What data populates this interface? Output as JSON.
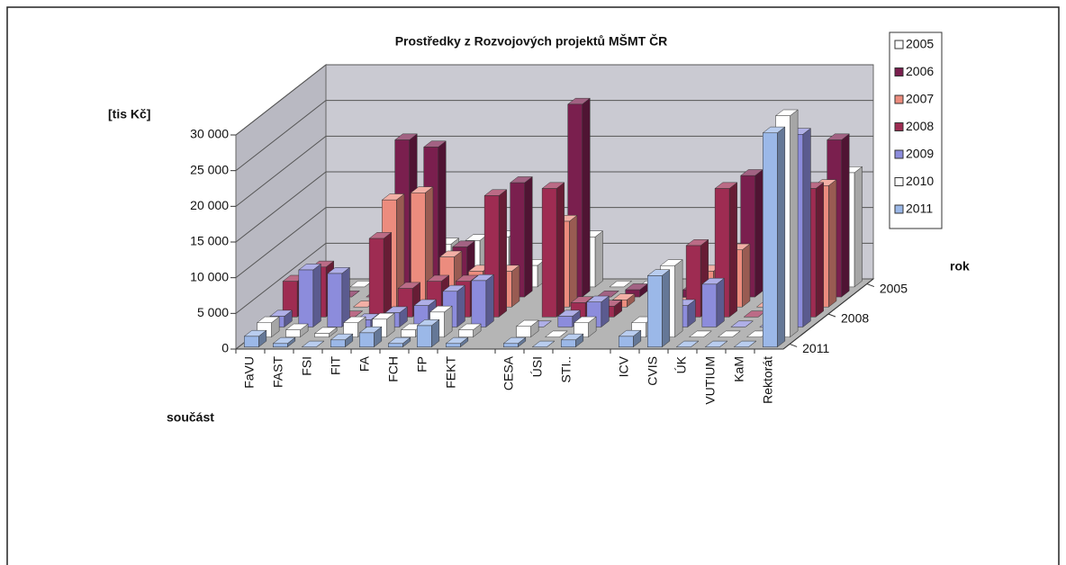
{
  "chart_data": {
    "type": "bar3d",
    "title": "Prostředky z Rozvojových projektů MŠMT ČR",
    "y_label": "[tis Kč]",
    "x_label": "součást",
    "z_label": "rok",
    "categories": [
      "FaVU",
      "FAST",
      "FSI",
      "FIT",
      "FA",
      "FCH",
      "FP",
      "FEKT",
      null,
      "CESA",
      "ÚSI",
      "STI..",
      null,
      "ICV",
      "CVIS",
      "ÚK",
      "VUTIUM",
      "KaM",
      "Rektorát"
    ],
    "ylim": [
      0,
      30000
    ],
    "yticks": [
      0,
      {
        "value": 5000,
        "label": "5 000"
      },
      {
        "value": 10000,
        "label": "10 000"
      },
      {
        "value": 15000,
        "label": "15 000"
      },
      {
        "value": 20000,
        "label": "20 000"
      },
      {
        "value": 25000,
        "label": "25 000"
      },
      {
        "value": 30000,
        "label": "30 000"
      }
    ],
    "grid": true,
    "series": [
      {
        "name": "2005",
        "color": "#ffffff",
        "values": [
          0,
          0,
          0,
          11000,
          6000,
          6500,
          7000,
          3000,
          null,
          7000,
          0,
          0,
          null,
          2000,
          0,
          10000,
          0,
          0,
          16000
        ]
      },
      {
        "name": "2006",
        "color": "#7a1f4e",
        "values": [
          0,
          0,
          0,
          22000,
          21000,
          7000,
          4000,
          16000,
          null,
          27000,
          0,
          1000,
          null,
          1000,
          0,
          17000,
          0,
          0,
          22000
        ]
      },
      {
        "name": "2007",
        "color": "#ec8c7e",
        "values": [
          500,
          2000,
          0,
          15000,
          16000,
          7000,
          5000,
          5000,
          null,
          12000,
          500,
          1000,
          null,
          500,
          5000,
          8000,
          0,
          0,
          17000
        ]
      },
      {
        "name": "2008",
        "color": "#9e2c52",
        "values": [
          5000,
          7000,
          0,
          11000,
          4000,
          5000,
          5000,
          17000,
          null,
          18000,
          2000,
          1500,
          null,
          1500,
          10000,
          18000,
          0,
          0,
          18000
        ]
      },
      {
        "name": "2009",
        "color": "#8c8cdc",
        "values": [
          1500,
          8000,
          7500,
          1000,
          2000,
          3000,
          5000,
          6500,
          null,
          0,
          1500,
          3500,
          null,
          0,
          3000,
          6000,
          0,
          0,
          27000
        ]
      },
      {
        "name": "2010",
        "color": "#ffffff",
        "values": [
          2000,
          1000,
          500,
          2000,
          2500,
          1000,
          3500,
          1000,
          null,
          1500,
          0,
          2000,
          null,
          2000,
          10000,
          0,
          0,
          0,
          31000
        ]
      },
      {
        "name": "2011",
        "color": "#9bb8e8",
        "values": [
          1500,
          500,
          0,
          1000,
          2000,
          500,
          3000,
          500,
          null,
          500,
          0,
          1000,
          null,
          1500,
          10000,
          0,
          0,
          0,
          30000
        ]
      }
    ]
  }
}
